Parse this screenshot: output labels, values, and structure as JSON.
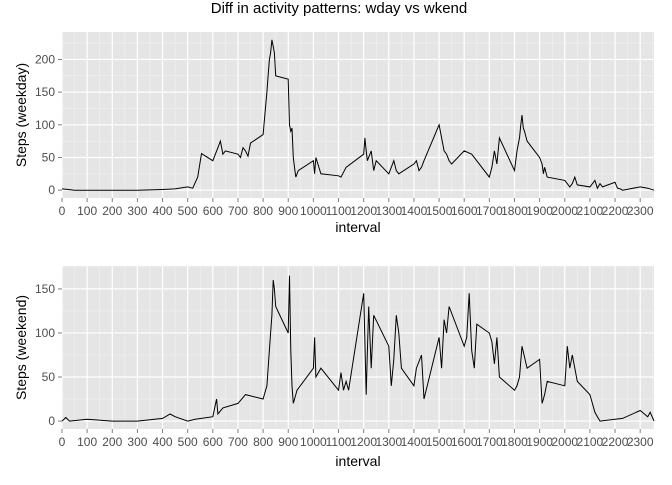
{
  "title": "Diff in activity patterns: wday vs wkend",
  "colors": {
    "panel_bg": "#e5e5e5",
    "grid_major": "#ffffff",
    "grid_minor": "#f2f2f2",
    "line": "#000000",
    "tick_text": "#4d4d4d"
  },
  "chart_data": [
    {
      "type": "line",
      "ylabel": "Steps (weekday)",
      "xlabel": "interval",
      "xlim": [
        0,
        2355
      ],
      "ylim": [
        -12,
        242
      ],
      "x_ticks": [
        0,
        100,
        200,
        300,
        400,
        500,
        600,
        700,
        800,
        900,
        1000,
        1100,
        1200,
        1300,
        1400,
        1500,
        1600,
        1700,
        1800,
        1900,
        2000,
        2100,
        2200,
        2300
      ],
      "y_ticks": [
        0,
        50,
        100,
        150,
        200
      ],
      "grid": true,
      "series": [
        {
          "x": [
            0,
            25,
            50,
            100,
            150,
            200,
            300,
            400,
            450,
            500,
            520,
            540,
            555,
            600,
            620,
            630,
            640,
            650,
            700,
            710,
            720,
            730,
            740,
            750,
            800,
            815,
            820,
            825,
            830,
            835,
            840,
            845,
            850,
            900,
            905,
            910,
            915,
            920,
            925,
            930,
            940,
            1000,
            1005,
            1010,
            1030,
            1100,
            1110,
            1130,
            1200,
            1205,
            1210,
            1215,
            1230,
            1240,
            1250,
            1300,
            1310,
            1320,
            1330,
            1340,
            1400,
            1410,
            1420,
            1430,
            1440,
            1500,
            1520,
            1530,
            1540,
            1550,
            1600,
            1630,
            1700,
            1710,
            1720,
            1730,
            1740,
            1800,
            1810,
            1820,
            1825,
            1830,
            1835,
            1840,
            1850,
            1900,
            1910,
            1915,
            1920,
            1930,
            2000,
            2020,
            2030,
            2040,
            2050,
            2100,
            2120,
            2130,
            2140,
            2150,
            2200,
            2210,
            2220,
            2230,
            2300,
            2330,
            2355
          ],
          "y": [
            2,
            1,
            0,
            0,
            0,
            0,
            0,
            1,
            2,
            5,
            3,
            20,
            56,
            45,
            65,
            75,
            55,
            60,
            55,
            50,
            65,
            60,
            52,
            72,
            85,
            150,
            175,
            200,
            210,
            230,
            220,
            210,
            175,
            170,
            100,
            90,
            95,
            50,
            35,
            20,
            30,
            45,
            25,
            50,
            25,
            22,
            20,
            35,
            55,
            80,
            60,
            45,
            60,
            30,
            45,
            25,
            35,
            45,
            30,
            25,
            40,
            45,
            30,
            35,
            45,
            100,
            60,
            55,
            45,
            40,
            60,
            55,
            20,
            35,
            60,
            40,
            80,
            30,
            60,
            80,
            100,
            115,
            95,
            90,
            75,
            50,
            40,
            25,
            35,
            20,
            15,
            5,
            10,
            20,
            8,
            5,
            15,
            3,
            10,
            5,
            12,
            3,
            2,
            0,
            5,
            3,
            0
          ]
        }
      ]
    },
    {
      "type": "line",
      "ylabel": "Steps (weekend)",
      "xlabel": "interval",
      "xlim": [
        0,
        2355
      ],
      "ylim": [
        -9,
        176
      ],
      "x_ticks": [
        0,
        100,
        200,
        300,
        400,
        500,
        600,
        700,
        800,
        900,
        1000,
        1100,
        1200,
        1300,
        1400,
        1500,
        1600,
        1700,
        1800,
        1900,
        2000,
        2100,
        2200,
        2300
      ],
      "y_ticks": [
        0,
        50,
        100,
        150
      ],
      "grid": true,
      "series": [
        {
          "x": [
            0,
            15,
            30,
            100,
            200,
            300,
            400,
            430,
            450,
            500,
            530,
            600,
            615,
            620,
            640,
            700,
            730,
            800,
            815,
            830,
            835,
            840,
            845,
            850,
            900,
            905,
            910,
            915,
            920,
            930,
            935,
            1000,
            1005,
            1010,
            1030,
            1100,
            1110,
            1120,
            1130,
            1140,
            1200,
            1210,
            1215,
            1220,
            1230,
            1240,
            1300,
            1310,
            1320,
            1330,
            1340,
            1350,
            1400,
            1410,
            1430,
            1440,
            1500,
            1510,
            1520,
            1530,
            1540,
            1600,
            1610,
            1620,
            1630,
            1640,
            1650,
            1700,
            1710,
            1720,
            1730,
            1740,
            1800,
            1810,
            1820,
            1830,
            1850,
            1900,
            1910,
            1920,
            1930,
            2000,
            2010,
            2020,
            2030,
            2040,
            2050,
            2100,
            2110,
            2120,
            2130,
            2140,
            2200,
            2230,
            2300,
            2330,
            2340,
            2355
          ],
          "y": [
            0,
            4,
            0,
            2,
            0,
            0,
            3,
            8,
            5,
            0,
            2,
            5,
            25,
            8,
            15,
            20,
            30,
            25,
            40,
            100,
            120,
            160,
            150,
            130,
            100,
            165,
            80,
            40,
            20,
            30,
            35,
            60,
            95,
            50,
            60,
            35,
            55,
            35,
            45,
            35,
            145,
            30,
            80,
            130,
            60,
            120,
            85,
            40,
            70,
            120,
            100,
            60,
            40,
            60,
            75,
            25,
            95,
            60,
            115,
            100,
            130,
            85,
            95,
            145,
            80,
            60,
            110,
            100,
            90,
            65,
            95,
            50,
            35,
            40,
            50,
            85,
            60,
            70,
            20,
            30,
            45,
            40,
            85,
            60,
            75,
            60,
            45,
            30,
            20,
            10,
            5,
            0,
            2,
            3,
            12,
            5,
            10,
            0
          ]
        }
      ]
    }
  ]
}
